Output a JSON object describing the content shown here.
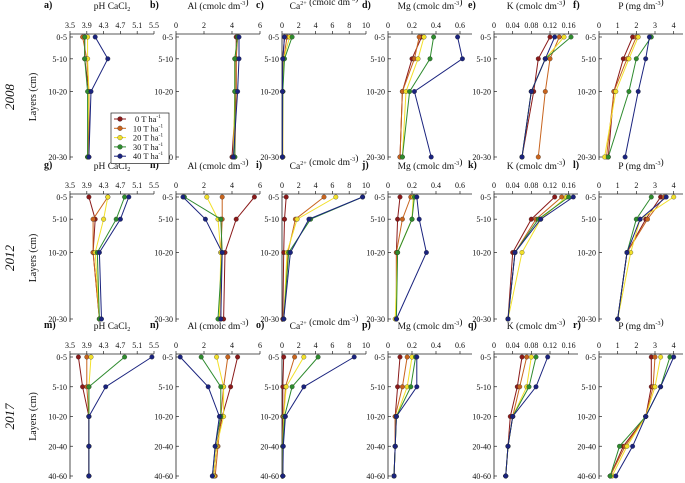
{
  "figure": {
    "series_colors": [
      "#8b1a1a",
      "#c8641e",
      "#f2e02a",
      "#2e8b2e",
      "#1a237e"
    ],
    "legend": {
      "entries": [
        "0 T ha-1",
        "10 T ha-1",
        "20 T ha-1",
        "30 T ha-1",
        "40 T ha-1"
      ],
      "series_ref": [
        0,
        1,
        2,
        3,
        4
      ]
    },
    "rows": [
      {
        "year": "2008",
        "ylabel": "Layers (cm)",
        "layers": [
          "0-5",
          "5-10",
          "10-20",
          "20-30"
        ],
        "layer_pos": [
          2.5,
          7.5,
          15,
          30
        ]
      },
      {
        "year": "2012",
        "ylabel": "Layers (cm)",
        "layers": [
          "0-5",
          "5-10",
          "10-20",
          "20-30"
        ],
        "layer_pos": [
          2.5,
          7.5,
          15,
          30
        ]
      },
      {
        "year": "2017",
        "ylabel": "Layers (cm)",
        "layers": [
          "0-5",
          "5-10",
          "10-20",
          "20-40",
          "40-60"
        ],
        "layer_pos": [
          1,
          2,
          3,
          4,
          5
        ]
      }
    ],
    "columns": [
      {
        "title": "pH CaCl2",
        "ticks": [
          "3.5",
          "3.9",
          "4.3",
          "4.7",
          "5.1",
          "5.5"
        ],
        "range": [
          3.5,
          5.5
        ]
      },
      {
        "title": "Al (cmolc dm-3)",
        "ticks": [
          "0",
          "2",
          "4",
          "6"
        ],
        "range": [
          0,
          6
        ]
      },
      {
        "title": "Ca2+ (cmolc dm-3)",
        "ticks": [
          "0",
          "2",
          "4",
          "6",
          "8",
          "10"
        ],
        "range": [
          0,
          10
        ]
      },
      {
        "title": "Mg (cmolc dm-3)",
        "ticks": [
          "0",
          "0.2",
          "0.4",
          "0.6"
        ],
        "range": [
          0,
          0.7
        ]
      },
      {
        "title": "K (cmolc dm-3)",
        "ticks": [
          "0",
          "0.04",
          "0.08",
          "0.12",
          "0.16"
        ],
        "range": [
          0,
          0.18
        ]
      },
      {
        "title": "P (mg dm-3)",
        "ticks": [
          "0",
          "1",
          "2",
          "3",
          "4"
        ],
        "range": [
          0,
          4.5
        ]
      }
    ]
  },
  "chart_data": [
    {
      "panel": "a",
      "type": "line",
      "row": 0,
      "col": 0,
      "series": [
        [
          3.85,
          3.85,
          3.95,
          3.95
        ],
        [
          3.8,
          3.9,
          3.95,
          3.92
        ],
        [
          3.92,
          3.92,
          3.95,
          3.92
        ],
        [
          3.85,
          3.85,
          3.92,
          3.92
        ],
        [
          4.1,
          4.4,
          4.0,
          3.95
        ]
      ]
    },
    {
      "panel": "b",
      "type": "line",
      "row": 0,
      "col": 1,
      "series": [
        [
          4.3,
          4.3,
          4.3,
          4.0
        ],
        [
          4.4,
          4.3,
          4.3,
          4.2
        ],
        [
          4.4,
          4.2,
          4.2,
          4.1
        ],
        [
          4.4,
          4.2,
          4.2,
          4.2
        ],
        [
          4.5,
          4.5,
          4.4,
          4.1
        ]
      ]
    },
    {
      "panel": "c",
      "type": "line",
      "row": 0,
      "col": 2,
      "series": [
        [
          0.3,
          0.1,
          0.1,
          0.05
        ],
        [
          0.6,
          0.2,
          0.1,
          0.1
        ],
        [
          0.9,
          0.2,
          0.1,
          0.1
        ],
        [
          1.2,
          0.3,
          0.1,
          0.05
        ],
        [
          0.3,
          0.1,
          0.05,
          0.05
        ]
      ]
    },
    {
      "panel": "d",
      "type": "line",
      "row": 0,
      "col": 3,
      "series": [
        [
          0.28,
          0.2,
          0.12,
          0.1
        ],
        [
          0.26,
          0.22,
          0.12,
          0.1
        ],
        [
          0.3,
          0.25,
          0.15,
          0.12
        ],
        [
          0.38,
          0.35,
          0.18,
          0.12
        ],
        [
          0.58,
          0.62,
          0.22,
          0.36
        ]
      ]
    },
    {
      "panel": "e",
      "type": "line",
      "row": 0,
      "col": 4,
      "series": [
        [
          0.12,
          0.095,
          0.085,
          0.06
        ],
        [
          0.14,
          0.12,
          0.11,
          0.095
        ],
        [
          0.15,
          0.11,
          0.08,
          0.06
        ],
        [
          0.165,
          0.11,
          0.08,
          0.06
        ],
        [
          0.13,
          0.11,
          0.08,
          0.06
        ]
      ]
    },
    {
      "panel": "f",
      "type": "line",
      "row": 0,
      "col": 5,
      "series": [
        [
          1.8,
          1.3,
          0.8,
          0.5
        ],
        [
          2.0,
          1.5,
          0.8,
          0.4
        ],
        [
          2.1,
          1.6,
          0.9,
          0.3
        ],
        [
          2.8,
          2.0,
          1.6,
          0.5
        ],
        [
          2.7,
          2.5,
          2.1,
          1.4
        ]
      ]
    },
    {
      "panel": "g",
      "type": "line",
      "row": 1,
      "col": 0,
      "series": [
        [
          3.95,
          4.1,
          4.05,
          4.2
        ],
        [
          4.4,
          4.05,
          4.05,
          4.2
        ],
        [
          4.4,
          4.3,
          4.1,
          4.2
        ],
        [
          4.8,
          4.6,
          4.15,
          4.2
        ],
        [
          4.9,
          4.7,
          4.2,
          4.25
        ]
      ]
    },
    {
      "panel": "h",
      "type": "line",
      "row": 1,
      "col": 1,
      "series": [
        [
          5.6,
          4.3,
          3.5,
          3.4
        ],
        [
          3.3,
          3.3,
          3.2,
          3.2
        ],
        [
          2.2,
          3.0,
          3.2,
          3.1
        ],
        [
          0.6,
          3.2,
          3.3,
          3.0
        ],
        [
          0.5,
          2.1,
          3.3,
          3.2
        ]
      ]
    },
    {
      "panel": "i",
      "type": "line",
      "row": 1,
      "col": 2,
      "series": [
        [
          0.5,
          0.3,
          0.2,
          0.1
        ],
        [
          5.0,
          1.6,
          0.7,
          0.2
        ],
        [
          6.4,
          1.8,
          0.6,
          0.2
        ],
        [
          9.6,
          3.4,
          0.8,
          0.2
        ],
        [
          9.6,
          3.2,
          1.0,
          0.2
        ]
      ]
    },
    {
      "panel": "j",
      "type": "line",
      "row": 1,
      "col": 3,
      "series": [
        [
          0.1,
          0.08,
          0.07,
          0.07
        ],
        [
          0.19,
          0.12,
          0.07,
          0.07
        ],
        [
          0.21,
          0.2,
          0.08,
          0.06
        ],
        [
          0.22,
          0.2,
          0.08,
          0.07
        ],
        [
          0.24,
          0.26,
          0.32,
          0.07
        ]
      ]
    },
    {
      "panel": "k",
      "type": "line",
      "row": 1,
      "col": 4,
      "series": [
        [
          0.13,
          0.08,
          0.04,
          0.03
        ],
        [
          0.145,
          0.09,
          0.045,
          0.03
        ],
        [
          0.155,
          0.1,
          0.06,
          0.03
        ],
        [
          0.16,
          0.095,
          0.045,
          0.03
        ],
        [
          0.17,
          0.1,
          0.045,
          0.03
        ]
      ]
    },
    {
      "panel": "l",
      "type": "line",
      "row": 1,
      "col": 5,
      "series": [
        [
          3.3,
          2.5,
          1.5,
          1.0
        ],
        [
          3.5,
          2.6,
          1.5,
          1.0
        ],
        [
          4.0,
          2.2,
          1.7,
          1.0
        ],
        [
          2.8,
          2.0,
          1.5,
          1.0
        ],
        [
          3.6,
          2.2,
          1.5,
          1.0
        ]
      ]
    },
    {
      "panel": "m",
      "type": "line",
      "row": 2,
      "col": 0,
      "series": [
        [
          3.7,
          3.8,
          3.95,
          3.95,
          3.95
        ],
        [
          3.9,
          3.9,
          3.95,
          3.95,
          3.95
        ],
        [
          4.0,
          3.95,
          3.95,
          3.95,
          3.95
        ],
        [
          4.8,
          3.95,
          3.95,
          3.95,
          3.95
        ],
        [
          5.45,
          4.35,
          3.95,
          3.95,
          3.95
        ]
      ]
    },
    {
      "panel": "n",
      "type": "line",
      "row": 2,
      "col": 1,
      "series": [
        [
          4.4,
          3.9,
          3.3,
          2.9,
          2.7
        ],
        [
          3.7,
          3.4,
          3.2,
          3.0,
          2.8
        ],
        [
          2.9,
          3.4,
          3.4,
          2.9,
          2.7
        ],
        [
          1.8,
          3.2,
          3.2,
          2.8,
          2.6
        ],
        [
          0.3,
          2.3,
          3.1,
          2.8,
          2.6
        ]
      ]
    },
    {
      "panel": "o",
      "type": "line",
      "row": 2,
      "col": 2,
      "series": [
        [
          0.2,
          0.1,
          0.1,
          0.1,
          0.1
        ],
        [
          1.5,
          0.4,
          0.2,
          0.1,
          0.1
        ],
        [
          2.6,
          0.5,
          0.2,
          0.1,
          0.1
        ],
        [
          4.3,
          1.2,
          0.3,
          0.1,
          0.1
        ],
        [
          8.6,
          2.6,
          0.4,
          0.15,
          0.1
        ]
      ]
    },
    {
      "panel": "p",
      "type": "line",
      "row": 2,
      "col": 3,
      "series": [
        [
          0.1,
          0.08,
          0.06,
          0.06,
          0.05
        ],
        [
          0.16,
          0.12,
          0.06,
          0.06,
          0.05
        ],
        [
          0.2,
          0.16,
          0.07,
          0.06,
          0.05
        ],
        [
          0.23,
          0.19,
          0.07,
          0.06,
          0.05
        ],
        [
          0.24,
          0.24,
          0.07,
          0.06,
          0.05
        ]
      ]
    },
    {
      "panel": "q",
      "type": "line",
      "row": 2,
      "col": 4,
      "series": [
        [
          0.06,
          0.05,
          0.035,
          0.03,
          0.025
        ],
        [
          0.07,
          0.055,
          0.04,
          0.03,
          0.025
        ],
        [
          0.08,
          0.07,
          0.04,
          0.03,
          0.025
        ],
        [
          0.09,
          0.075,
          0.04,
          0.03,
          0.025
        ],
        [
          0.115,
          0.09,
          0.04,
          0.03,
          0.025
        ]
      ]
    },
    {
      "panel": "r",
      "type": "line",
      "row": 2,
      "col": 5,
      "series": [
        [
          2.8,
          2.8,
          2.5,
          1.3,
          0.6
        ],
        [
          3.0,
          2.9,
          2.5,
          1.4,
          0.6
        ],
        [
          3.3,
          3.0,
          2.5,
          1.5,
          0.7
        ],
        [
          3.8,
          3.3,
          2.5,
          1.1,
          0.6
        ],
        [
          4.0,
          3.3,
          2.5,
          1.8,
          0.9
        ]
      ]
    }
  ]
}
